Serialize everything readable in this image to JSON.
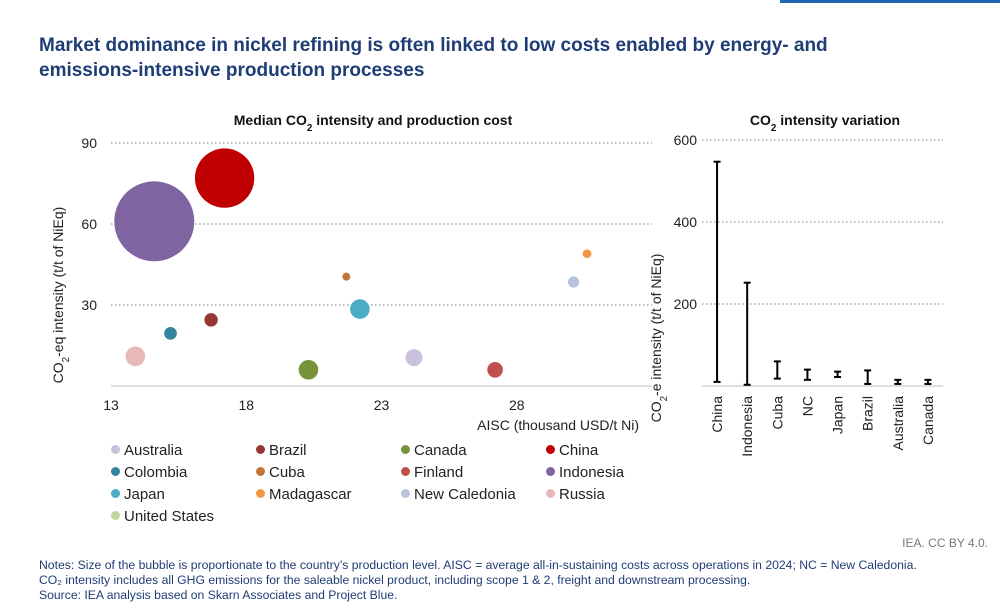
{
  "title_lines": [
    "Market dominance in nickel refining is often linked to low costs enabled by energy- and",
    "emissions-intensive production processes"
  ],
  "chart_data": [
    {
      "type": "scatter",
      "subtype": "bubble",
      "title": "Median CO₂ intensity and production cost",
      "xlabel": "AISC (thousand USD/t Ni)",
      "ylabel": "CO₂-eq intensity (t/t of NiEq)",
      "xlim": [
        13,
        33
      ],
      "ylim": [
        0,
        90
      ],
      "xticks": [
        13,
        18,
        23,
        28
      ],
      "yticks": [
        30,
        60,
        90
      ],
      "grid": "horizontal dotted",
      "points": [
        {
          "name": "Indonesia",
          "x": 14.6,
          "y": 61,
          "size": 100,
          "color": "#8064a2"
        },
        {
          "name": "China",
          "x": 17.2,
          "y": 77,
          "size": 55,
          "color": "#c00000"
        },
        {
          "name": "Russia",
          "x": 13.9,
          "y": 11,
          "size": 6,
          "color": "#e6b9b8"
        },
        {
          "name": "Colombia",
          "x": 15.2,
          "y": 19.5,
          "size": 2.5,
          "color": "#31859c"
        },
        {
          "name": "Brazil",
          "x": 16.7,
          "y": 24.5,
          "size": 2.8,
          "color": "#953735"
        },
        {
          "name": "Canada",
          "x": 20.3,
          "y": 6,
          "size": 6,
          "color": "#77933c"
        },
        {
          "name": "Cuba",
          "x": 21.7,
          "y": 40.5,
          "size": 0.8,
          "color": "#c27538"
        },
        {
          "name": "Japan",
          "x": 22.2,
          "y": 28.5,
          "size": 6,
          "color": "#4bacc6"
        },
        {
          "name": "Australia",
          "x": 24.2,
          "y": 10.5,
          "size": 4.5,
          "color": "#ccc1da"
        },
        {
          "name": "Finland",
          "x": 27.2,
          "y": 6,
          "size": 3.8,
          "color": "#c0504d"
        },
        {
          "name": "New Caledonia",
          "x": 30.1,
          "y": 38.5,
          "size": 2,
          "color": "#b9c4e0"
        },
        {
          "name": "Madagascar",
          "x": 30.6,
          "y": 49,
          "size": 1.2,
          "color": "#f79646"
        }
      ],
      "legend": [
        {
          "label": "Australia",
          "color": "#ccc1da"
        },
        {
          "label": "Brazil",
          "color": "#953735"
        },
        {
          "label": "Canada",
          "color": "#77933c"
        },
        {
          "label": "China",
          "color": "#c00000"
        },
        {
          "label": "Colombia",
          "color": "#31859c"
        },
        {
          "label": "Cuba",
          "color": "#c27538"
        },
        {
          "label": "Finland",
          "color": "#c0504d"
        },
        {
          "label": "Indonesia",
          "color": "#8064a2"
        },
        {
          "label": "Japan",
          "color": "#4bacc6"
        },
        {
          "label": "Madagascar",
          "color": "#f79646"
        },
        {
          "label": "New Caledonia",
          "color": "#b9c4e0"
        },
        {
          "label": "Russia",
          "color": "#e6b9b8"
        },
        {
          "label": "United States",
          "color": "#c3d69b"
        }
      ]
    },
    {
      "type": "bar",
      "subtype": "range",
      "title": "CO₂ intensity variation",
      "ylabel": "CO₂-e intensity (t/t of NiEq)",
      "ylim": [
        0,
        600
      ],
      "yticks": [
        200,
        400,
        600
      ],
      "grid": "horizontal dotted",
      "categories": [
        "China",
        "Indonesia",
        "Cuba",
        "NC",
        "Japan",
        "Brazil",
        "Australia",
        "Canada"
      ],
      "ranges": [
        {
          "name": "China",
          "low": 10,
          "high": 547
        },
        {
          "name": "Indonesia",
          "low": 3,
          "high": 252
        },
        {
          "name": "Cuba",
          "low": 18,
          "high": 60
        },
        {
          "name": "NC",
          "low": 15,
          "high": 40
        },
        {
          "name": "Japan",
          "low": 22,
          "high": 35
        },
        {
          "name": "Brazil",
          "low": 5,
          "high": 38
        },
        {
          "name": "Australia",
          "low": 5,
          "high": 15
        },
        {
          "name": "Canada",
          "low": 5,
          "high": 15
        }
      ]
    }
  ],
  "credit": "IEA. CC BY 4.0.",
  "notes": [
    "Notes: Size of the bubble is proportionate to the country’s production level. AISC = average all-in-sustaining costs across operations in 2024; NC = New Caledonia.",
    "CO₂ intensity includes all GHG emissions for the saleable nickel product, including scope 1 & 2, freight and downstream processing.",
    "Source: IEA analysis based on Skarn Associates and Project Blue."
  ],
  "colors": {
    "title": "#1f3d75",
    "accent": "#1f66b6",
    "grid": "#808080"
  }
}
